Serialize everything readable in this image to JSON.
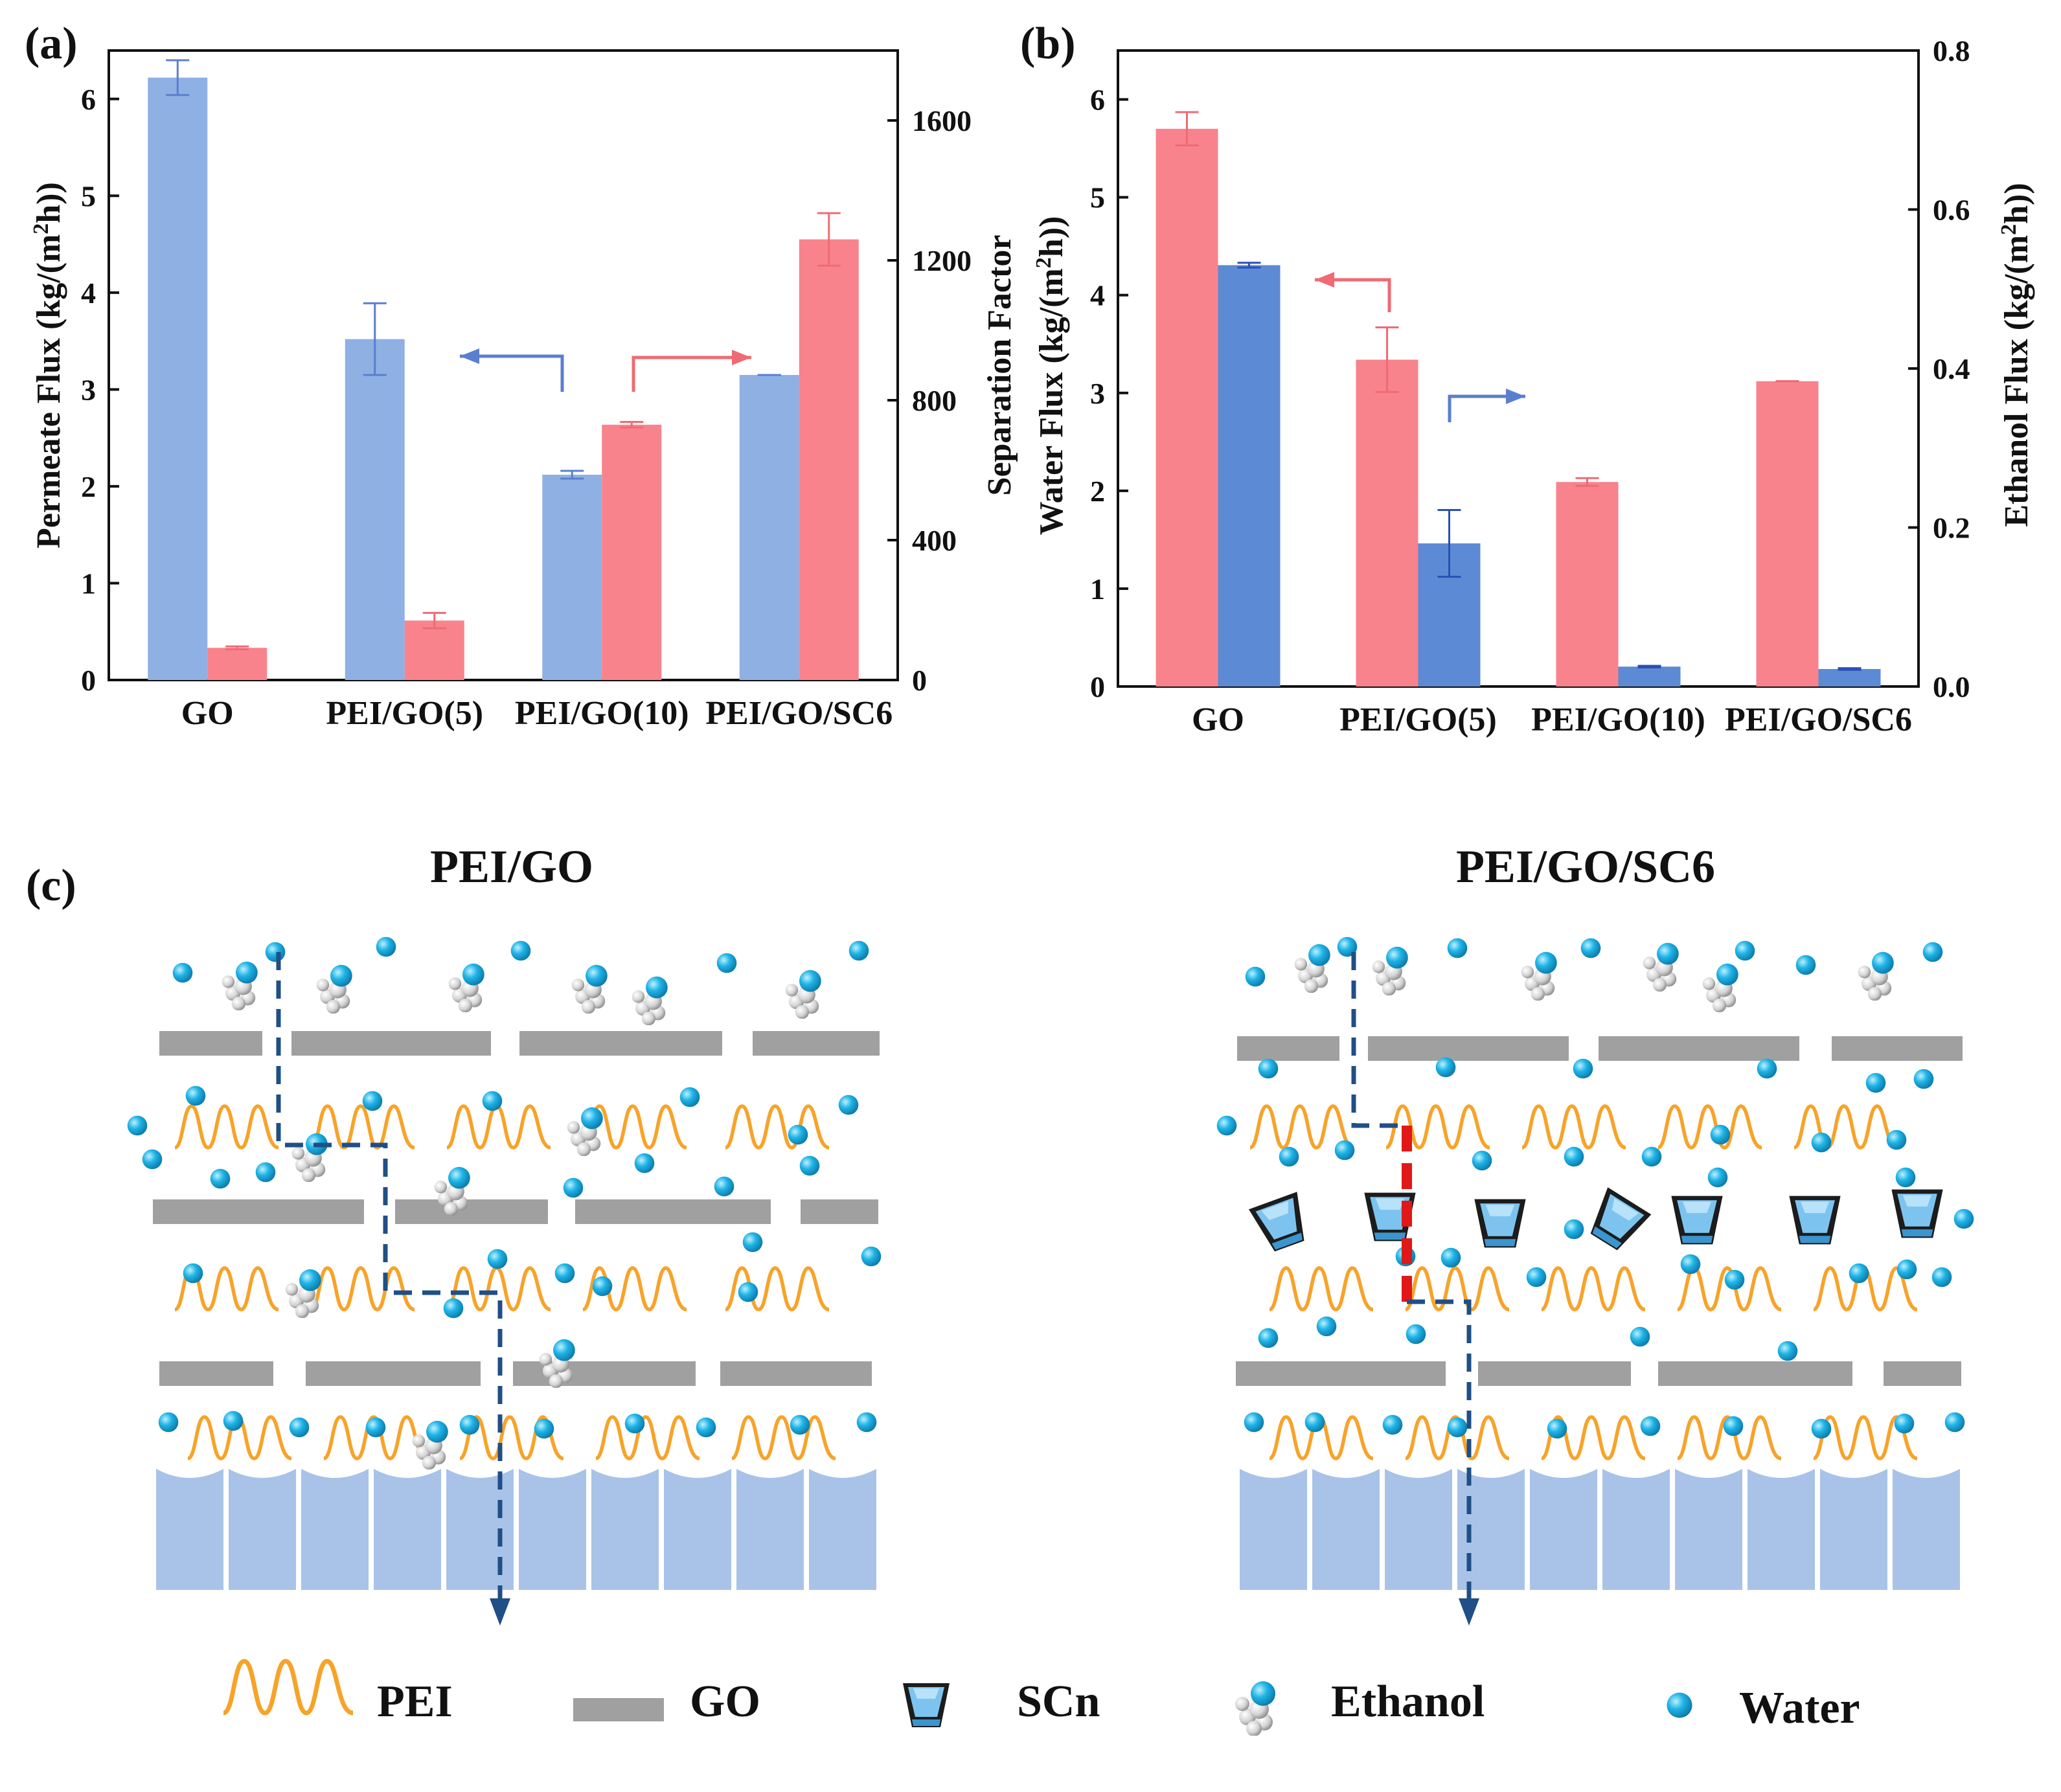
{
  "colors": {
    "blue_light": "#8fb0e3",
    "blue_dark": "#5c8ad4",
    "pink": "#f8838c",
    "pink_err": "#f06a74",
    "blue_err": "#5a7fcf",
    "blue_err_dark": "#2a4fb8",
    "go_gray": "#a0a0a0",
    "pei_orange": "#f7a32a",
    "water_cyan": "#1fb4e6",
    "path_blue": "#1f4f86",
    "path_red": "#e01818",
    "substrate": "#a9c3e8"
  },
  "chart_data": [
    {
      "panel": "(a)",
      "type": "bar",
      "categories": [
        "GO",
        "PEI/GO(5)",
        "PEI/GO(10)",
        "PEI/GO/SC6"
      ],
      "ylabel": "Permeate Flux (kg/(m2h))",
      "ylabel_parts": [
        "Permeate Flux (kg/(m",
        "2",
        "h))"
      ],
      "y2label": "Separation Factor",
      "ylim": [
        0,
        6.5
      ],
      "yticks": [
        "0",
        "1",
        "2",
        "3",
        "4",
        "5",
        "6"
      ],
      "y2lim": [
        0,
        1800
      ],
      "y2ticks": [
        "0",
        "400",
        "800",
        "1200",
        "1600"
      ],
      "series": [
        {
          "name": "Permeate Flux",
          "axis": "left",
          "color": "blue_light",
          "err_color": "blue_err",
          "values": [
            6.22,
            3.52,
            2.12,
            3.15
          ],
          "errors": [
            0.18,
            0.37,
            0.04,
            0.0
          ]
        },
        {
          "name": "Separation Factor",
          "axis": "right",
          "color": "pink",
          "err_color": "pink_err",
          "values": [
            92,
            170,
            730,
            1260
          ],
          "errors": [
            4,
            22,
            8,
            75
          ]
        }
      ]
    },
    {
      "panel": "(b)",
      "type": "bar",
      "categories": [
        "GO",
        "PEI/GO(5)",
        "PEI/GO(10)",
        "PEI/GO/SC6"
      ],
      "ylabel": "Water Flux (kg/(m2h))",
      "ylabel_parts": [
        "Water Flux (kg/(m",
        "2",
        "h))"
      ],
      "y2label": "Ethanol Flux (kg/(m2h))",
      "y2label_parts": [
        "Ethanol Flux (kg/(m",
        "2",
        "h))"
      ],
      "ylim": [
        0,
        6.5
      ],
      "yticks": [
        "0",
        "1",
        "2",
        "3",
        "4",
        "5",
        "6"
      ],
      "y2lim": [
        0,
        0.8
      ],
      "y2ticks": [
        "0.0",
        "0.2",
        "0.4",
        "0.6",
        "0.8"
      ],
      "series": [
        {
          "name": "Water Flux",
          "axis": "left",
          "color": "pink",
          "err_color": "pink_err",
          "values": [
            5.7,
            3.34,
            2.09,
            3.12
          ],
          "errors": [
            0.17,
            0.33,
            0.04,
            0.0
          ]
        },
        {
          "name": "Ethanol Flux",
          "axis": "right",
          "color": "blue_dark",
          "err_color": "blue_err_dark",
          "values": [
            0.53,
            0.18,
            0.025,
            0.022
          ],
          "errors": [
            0.003,
            0.042,
            0.001,
            0.001
          ]
        }
      ]
    }
  ],
  "scheme": {
    "panel_label": "(c)",
    "left_title": "PEI/GO",
    "right_title": "PEI/GO/SC6"
  },
  "legend": {
    "pei": "PEI",
    "go": "GO",
    "scn": "SCn",
    "ethanol": "Ethanol",
    "water": "Water"
  }
}
